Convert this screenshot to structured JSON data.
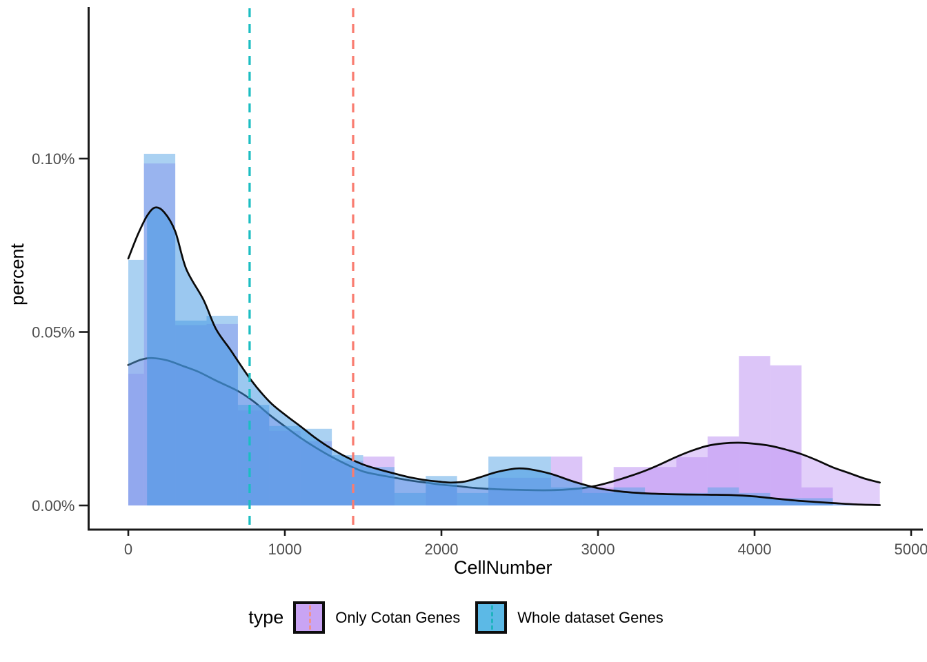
{
  "legend": {
    "title": "type",
    "entries": [
      {
        "label": "Only Cotan Genes",
        "key_fill": "#C9A4F4",
        "key_line": "#F0938C"
      },
      {
        "label": "Whole dataset Genes",
        "key_fill": "#5CB9E6",
        "key_line": "#1FB3BE"
      }
    ]
  },
  "chart_data": {
    "type": "histogram+density",
    "title": "",
    "xlabel": "CellNumber",
    "ylabel": "percent",
    "x_ticks": [
      0,
      1000,
      2000,
      3000,
      4000,
      5000
    ],
    "y_ticks": [
      {
        "value": 0.0,
        "label": "0.00%"
      },
      {
        "value": 0.05,
        "label": "0.05%"
      },
      {
        "value": 0.1,
        "label": "0.10%"
      }
    ],
    "xlim": [
      -250,
      5080
    ],
    "ylim": [
      0,
      0.1445
    ],
    "bin_width": 200,
    "grid": false,
    "legend_position": "bottom",
    "legend_title": "type",
    "axis_color": "#1a1a1a",
    "tick_label_color": "#4d4d4d",
    "series": [
      {
        "name": "Only Cotan Genes",
        "bar_fill": "rgba(185,140,242,0.50)",
        "density_fill": "rgba(185,140,242,0.42)",
        "density_stroke": "#0a0a0a",
        "mean_vline": {
          "x": 775,
          "color": "#1CBDC2",
          "note": "belongs to Whole dataset Genes"
        },
        "vline": {
          "x": 1436,
          "color": "#F97C70"
        },
        "bars": [
          [
            0,
            100,
            0.038
          ],
          [
            100,
            300,
            0.0986
          ],
          [
            300,
            500,
            0.052
          ],
          [
            500,
            700,
            0.0523
          ],
          [
            700,
            900,
            0.0274
          ],
          [
            900,
            1100,
            0.0215
          ],
          [
            1100,
            1300,
            0.0185
          ],
          [
            1300,
            1500,
            0.0129
          ],
          [
            1500,
            1700,
            0.0141
          ],
          [
            1900,
            2100,
            0.006
          ],
          [
            2300,
            2700,
            0.008
          ],
          [
            2700,
            2900,
            0.0141
          ],
          [
            2900,
            3100,
            0.0052
          ],
          [
            3100,
            3300,
            0.0111
          ],
          [
            3300,
            3500,
            0.0111
          ],
          [
            3500,
            3700,
            0.0139
          ],
          [
            3700,
            3900,
            0.0199
          ],
          [
            3900,
            4100,
            0.0431
          ],
          [
            4100,
            4300,
            0.0404
          ],
          [
            4300,
            4500,
            0.0052
          ]
        ],
        "density": {
          "x": [
            0,
            80,
            150,
            250,
            350,
            450,
            560,
            700,
            800,
            900,
            1000,
            1100,
            1200,
            1300,
            1400,
            1500,
            1600,
            1700,
            1800,
            1900,
            2000,
            2100,
            2200,
            2300,
            2400,
            2500,
            2600,
            2700,
            2800,
            2900,
            3000,
            3100,
            3200,
            3300,
            3400,
            3500,
            3600,
            3700,
            3800,
            3900,
            4000,
            4100,
            4200,
            4300,
            4400,
            4500,
            4600,
            4700,
            4800
          ],
          "y": [
            0.0405,
            0.042,
            0.0425,
            0.0418,
            0.0402,
            0.0385,
            0.036,
            0.033,
            0.03,
            0.0262,
            0.0228,
            0.0195,
            0.0166,
            0.014,
            0.0117,
            0.0098,
            0.0088,
            0.008,
            0.0072,
            0.0066,
            0.006,
            0.0056,
            0.0051,
            0.0048,
            0.0046,
            0.0045,
            0.0044,
            0.0044,
            0.0046,
            0.005,
            0.0058,
            0.007,
            0.0084,
            0.01,
            0.0119,
            0.014,
            0.0158,
            0.0172,
            0.0179,
            0.0181,
            0.0178,
            0.0172,
            0.0161,
            0.0148,
            0.013,
            0.011,
            0.0094,
            0.0078,
            0.0066
          ]
        },
        "fill_start_x": 0
      },
      {
        "name": "Whole dataset Genes",
        "bar_fill": "rgba(85,163,230,0.50)",
        "density_fill": "rgba(64,150,226,0.52)",
        "density_stroke": "#0a0a0a",
        "vline": {
          "x": 775,
          "color": "#1CBDC2"
        },
        "bars": [
          [
            0,
            100,
            0.0708
          ],
          [
            100,
            300,
            0.1014
          ],
          [
            300,
            500,
            0.0533
          ],
          [
            500,
            700,
            0.0547
          ],
          [
            700,
            900,
            0.029
          ],
          [
            900,
            1100,
            0.0229
          ],
          [
            1100,
            1300,
            0.0221
          ],
          [
            1300,
            1500,
            0.0145
          ],
          [
            1500,
            1700,
            0.0111
          ],
          [
            1700,
            1900,
            0.0036
          ],
          [
            1900,
            2100,
            0.0085
          ],
          [
            2100,
            2300,
            0.0036
          ],
          [
            2300,
            2700,
            0.0141
          ],
          [
            2700,
            2900,
            0.0052
          ],
          [
            2900,
            3100,
            0.0036
          ],
          [
            3100,
            3300,
            0.0052
          ],
          [
            3300,
            3500,
            0.0036
          ],
          [
            3500,
            3700,
            0.0036
          ],
          [
            3700,
            3900,
            0.0052
          ],
          [
            3900,
            4100,
            0.0036
          ],
          [
            4100,
            4300,
            0.0021
          ],
          [
            4300,
            4500,
            0.0021
          ]
        ],
        "density": {
          "x": [
            0,
            60,
            120,
            172,
            230,
            300,
            370,
            480,
            560,
            650,
            780,
            900,
            1000,
            1100,
            1200,
            1300,
            1400,
            1500,
            1600,
            1700,
            1800,
            1900,
            2000,
            2060,
            2150,
            2250,
            2350,
            2450,
            2500,
            2570,
            2700,
            2850,
            3000,
            3150,
            3300,
            3500,
            3700,
            3850,
            4000,
            4150,
            4300,
            4500,
            4650,
            4800
          ],
          "y": [
            0.0712,
            0.078,
            0.0835,
            0.0859,
            0.0845,
            0.079,
            0.0682,
            0.0593,
            0.0509,
            0.045,
            0.0364,
            0.03,
            0.0262,
            0.0228,
            0.0193,
            0.0163,
            0.0138,
            0.0118,
            0.0104,
            0.0092,
            0.0081,
            0.0073,
            0.0068,
            0.0066,
            0.0069,
            0.0082,
            0.0096,
            0.0105,
            0.0107,
            0.0104,
            0.0091,
            0.0068,
            0.005,
            0.004,
            0.0035,
            0.0032,
            0.0031,
            0.003,
            0.0026,
            0.0019,
            0.0013,
            0.0007,
            0.0003,
            0.0001
          ]
        },
        "fill_start_x": 95
      }
    ]
  }
}
